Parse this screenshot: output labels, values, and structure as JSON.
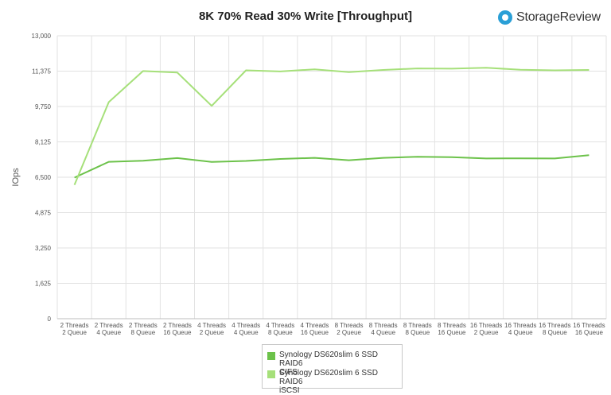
{
  "brand": {
    "name": "StorageReview",
    "icon": "storagereview-logo-icon"
  },
  "chart_data": {
    "type": "line",
    "title": "8K 70% Read 30% Write [Throughput]",
    "xlabel": "",
    "ylabel": "IOps",
    "ylim": [
      0,
      13000
    ],
    "yticks": [
      "0",
      "1,625",
      "3,250",
      "4,875",
      "6,500",
      "8,125",
      "9,750",
      "11,375",
      "13,000"
    ],
    "ytick_values": [
      0,
      1625,
      3250,
      4875,
      6500,
      8125,
      9750,
      11375,
      13000
    ],
    "grid": true,
    "legend_position": "bottom-center",
    "categories": [
      [
        "2 Threads",
        "2 Queue"
      ],
      [
        "2 Threads",
        "4 Queue"
      ],
      [
        "2 Threads",
        "8 Queue"
      ],
      [
        "2 Threads",
        "16 Queue"
      ],
      [
        "4 Threads",
        "2 Queue"
      ],
      [
        "4 Threads",
        "4 Queue"
      ],
      [
        "4 Threads",
        "8 Queue"
      ],
      [
        "4 Threads",
        "16 Queue"
      ],
      [
        "8 Threads",
        "2 Queue"
      ],
      [
        "8 Threads",
        "4 Queue"
      ],
      [
        "8 Threads",
        "8 Queue"
      ],
      [
        "8 Threads",
        "16 Queue"
      ],
      [
        "16 Threads",
        "2 Queue"
      ],
      [
        "16 Threads",
        "4 Queue"
      ],
      [
        "16 Threads",
        "8 Queue"
      ],
      [
        "16 Threads",
        "16 Queue"
      ]
    ],
    "series": [
      {
        "name": "Synology DS620slim 6 SSD RAID6 CIFS",
        "name_lines": [
          "Synology DS620slim 6 SSD RAID6",
          "CIFS"
        ],
        "color": "#6cc24a",
        "values": [
          6480,
          7210,
          7260,
          7380,
          7200,
          7250,
          7340,
          7390,
          7280,
          7390,
          7440,
          7420,
          7360,
          7370,
          7360,
          7510
        ]
      },
      {
        "name": "Synology DS620slim 6 SSD RAID6 iSCSI",
        "name_lines": [
          "Synology DS620slim 6 SSD RAID6",
          "iSCSI"
        ],
        "color": "#a6e07a",
        "values": [
          6150,
          9950,
          11380,
          11310,
          9780,
          11410,
          11360,
          11460,
          11330,
          11430,
          11500,
          11490,
          11530,
          11440,
          11410,
          11430
        ]
      }
    ]
  }
}
